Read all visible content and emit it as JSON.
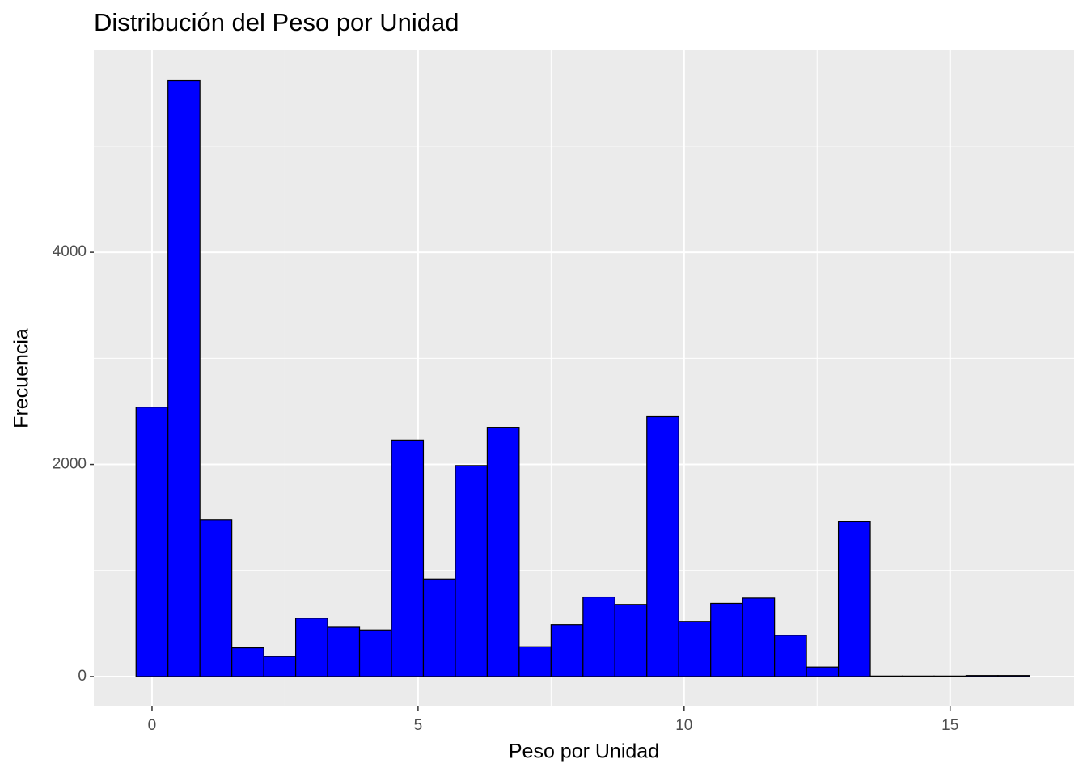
{
  "chart_data": {
    "type": "histogram",
    "title": "Distribución del Peso por Unidad",
    "x_label": "Peso por Unidad",
    "y_label": "Frecuencia",
    "bins": [
      -0.3,
      0.3,
      0.9,
      1.5,
      2.1,
      2.7,
      3.3,
      3.9,
      4.5,
      5.1,
      5.7,
      6.3,
      6.9,
      7.5,
      8.1,
      8.7,
      9.3,
      9.9,
      10.5,
      11.1,
      11.7,
      12.3,
      12.9,
      13.5,
      14.1,
      14.7,
      15.3,
      15.9,
      16.5
    ],
    "values": [
      2540,
      5620,
      1480,
      270,
      190,
      550,
      465,
      440,
      2230,
      920,
      1990,
      2350,
      280,
      490,
      750,
      680,
      2450,
      520,
      690,
      740,
      390,
      90,
      1460,
      5,
      5,
      5,
      10,
      10
    ],
    "color": "#0000ff",
    "edge_color": "#000000",
    "xlim": [
      -1.094,
      17.33
    ],
    "xticks": [
      0,
      5,
      10,
      15
    ],
    "ylim": [
      -282,
      5906
    ],
    "yticks": [
      0,
      2000,
      4000
    ],
    "grid": true
  }
}
